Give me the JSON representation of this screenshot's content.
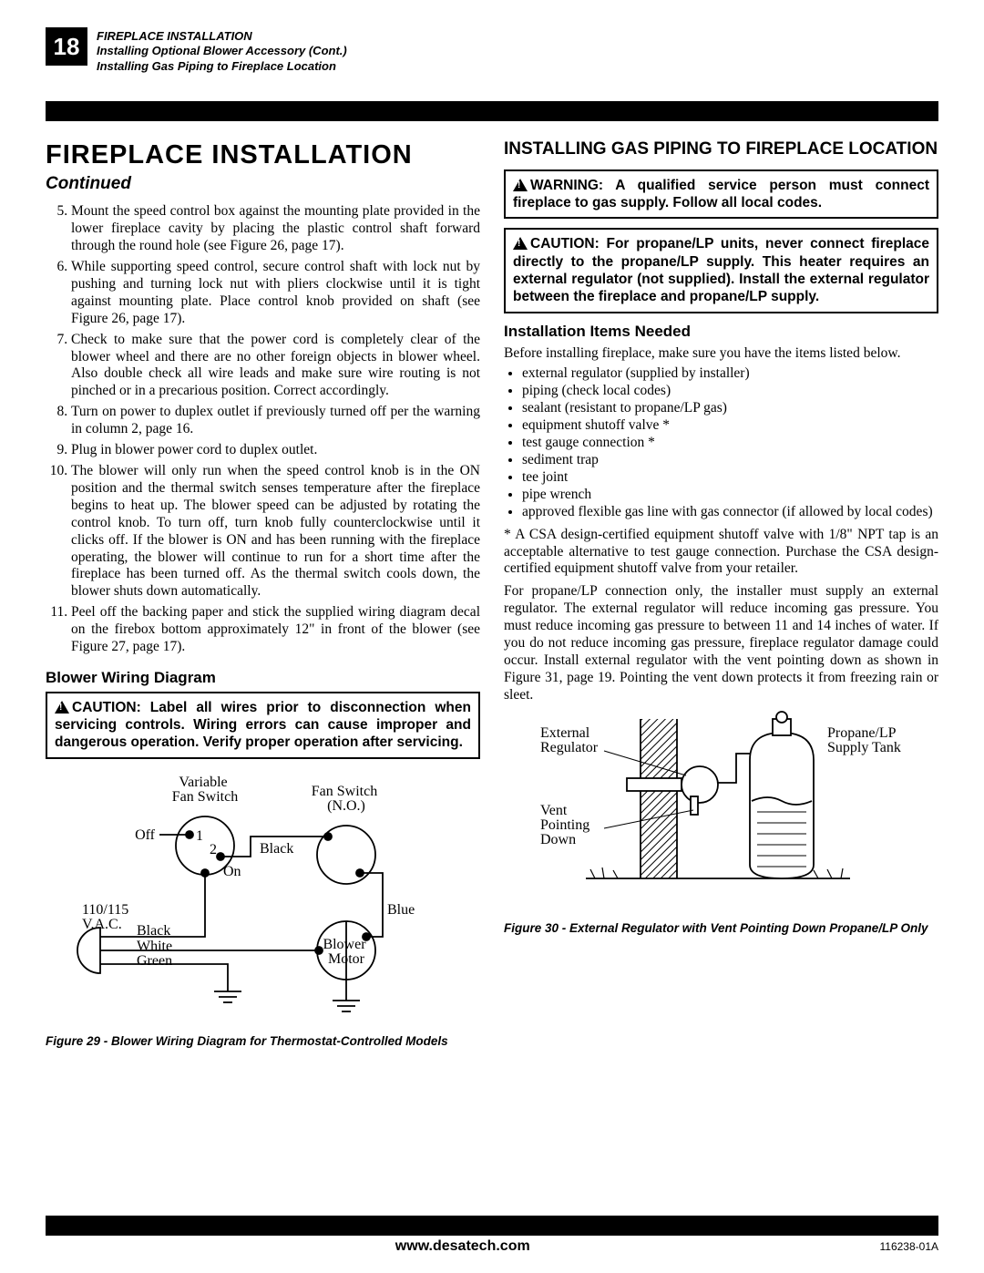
{
  "page_number": "18",
  "header": {
    "line1": "FIREPLACE INSTALLATION",
    "line2": "Installing Optional Blower Accessory (Cont.)",
    "line3": "Installing Gas Piping to Fireplace Location"
  },
  "left": {
    "heading": "FIREPLACE INSTALLATION",
    "continued": "Continued",
    "start_num": 5,
    "steps": [
      "Mount the speed control box against the mounting plate provided in the lower fireplace cavity by placing the plastic control shaft forward through the round hole (see Figure 26, page 17).",
      "While supporting speed control, secure control shaft with lock nut by pushing and turning lock nut with pliers clockwise until it is tight against mounting plate. Place control knob provided on shaft (see Figure 26, page 17).",
      "Check to make sure that the power cord is completely clear of the blower wheel and there are no other foreign objects in blower wheel. Also double check all wire leads and make sure wire routing is not pinched or in a precarious position. Correct accordingly.",
      "Turn on power to duplex outlet if previously turned off per the warning in column 2, page 16.",
      "Plug in blower power cord to duplex outlet.",
      "The blower will only run when the speed control knob is in the ON position and the thermal switch senses temperature after the fireplace begins to heat up. The blower speed can be adjusted by rotating the control knob. To turn off, turn knob fully counterclockwise until it clicks off. If the blower is ON and has been running with the fireplace operating, the blower will continue to run for a short time after the fireplace has been turned off. As the thermal switch cools down, the blower shuts down automatically.",
      "Peel off the backing paper and stick the supplied wiring diagram decal on the firebox bottom approximately 12\" in front of the blower (see Figure 27, page 17)."
    ],
    "wiring_heading": "Blower Wiring Diagram",
    "wiring_caution": "CAUTION: Label all wires prior to disconnection when servicing controls. Wiring errors can cause improper and dangerous operation. Verify proper operation after servicing.",
    "wiring_labels": {
      "variable_fan_switch": "Variable\nFan Switch",
      "fan_switch_no": "Fan Switch\n(N.O.)",
      "off": "Off",
      "on": "On",
      "black1": "Black",
      "black2": "Black",
      "white": "White",
      "green": "Green",
      "blue": "Blue",
      "vac": "110/115\nV.A.C.",
      "blower_motor": "Blower\nMotor",
      "n1": "1",
      "n2": "2"
    },
    "fig29": "Figure 29 - Blower Wiring Diagram for Thermostat-Controlled Models"
  },
  "right": {
    "heading": "INSTALLING GAS PIPING TO FIREPLACE LOCATION",
    "warning": "WARNING: A qualified service person must connect fireplace to gas supply. Follow all local codes.",
    "caution": "CAUTION: For propane/LP units, never connect fireplace directly to the propane/LP supply. This heater requires an external regulator (not supplied). Install the external regulator between the fireplace and propane/LP supply.",
    "items_heading": "Installation Items Needed",
    "items_intro": "Before installing fireplace, make sure you have the items listed below.",
    "items": [
      "external regulator (supplied by installer)",
      "piping (check local codes)",
      "sealant (resistant to propane/LP gas)",
      "equipment shutoff valve *",
      "test gauge connection *",
      "sediment trap",
      "tee joint",
      "pipe wrench",
      "approved flexible gas line with gas connector (if allowed by local codes)"
    ],
    "note": "* A CSA design-certified equipment shutoff valve with 1/8\" NPT tap is an acceptable alternative to test gauge connection. Purchase the CSA design-certified equipment shutoff valve from your retailer.",
    "para": "For propane/LP connection only, the installer must supply an external regulator. The external regulator will reduce incoming gas pressure. You must reduce incoming gas pressure to between 11 and 14 inches of water. If you do not reduce incoming gas pressure, fireplace regulator damage could occur. Install external regulator with the vent pointing down as shown in Figure 31, page 19. Pointing the vent down protects it from freezing rain or sleet.",
    "fig_labels": {
      "external_regulator": "External\nRegulator",
      "vent": "Vent\nPointing\nDown",
      "tank": "Propane/LP\nSupply Tank"
    },
    "fig30": "Figure 30 - External Regulator with Vent Pointing Down Propane/LP Only"
  },
  "footer": {
    "url": "www.desatech.com",
    "code": "116238-01A"
  },
  "colors": {
    "black": "#000000",
    "white": "#ffffff"
  }
}
